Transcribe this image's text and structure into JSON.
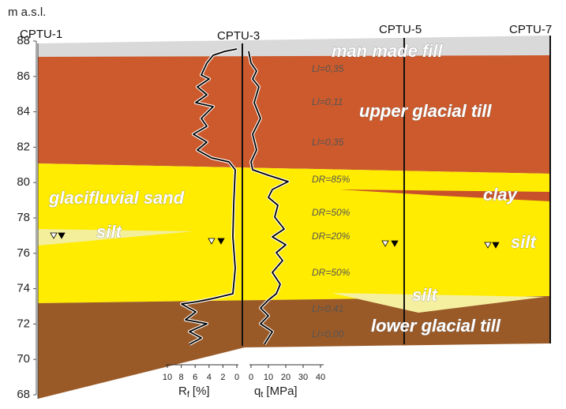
{
  "axis": {
    "label": "m a.s.l.",
    "ticks": [
      68,
      70,
      72,
      74,
      76,
      78,
      80,
      82,
      84,
      86,
      88
    ]
  },
  "boreholes": [
    "CPTU-1",
    "CPTU-3",
    "CPTU-5",
    "CPTU-7"
  ],
  "layers": [
    "man made fill",
    "upper glacial till",
    "glacifluvial sand",
    "clay",
    "silt",
    "silt",
    "silt",
    "lower glacial till"
  ],
  "annotations": [
    "LI=0,35",
    "LI=0,11",
    "LI=0,35",
    "DR=85%",
    "DR=50%",
    "DR=20%",
    "DR=50%",
    "LI=0,41",
    "LI=0,00"
  ],
  "logs": {
    "rf": {
      "symbol": "R",
      "subscript": "f",
      "unit": "[%]",
      "ticks": [
        10,
        8,
        6,
        4,
        2,
        0
      ]
    },
    "qt": {
      "symbol": "q",
      "subscript": "t",
      "unit": "[MPa]",
      "ticks": [
        0,
        10,
        20,
        30,
        40
      ]
    }
  }
}
